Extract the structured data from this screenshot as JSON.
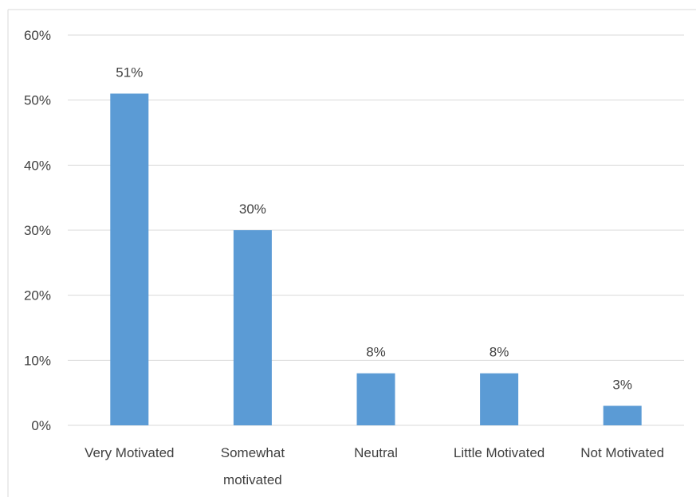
{
  "chart_data": {
    "type": "bar",
    "categories": [
      [
        "Very Motivated"
      ],
      [
        "Somewhat",
        "motivated"
      ],
      [
        "Neutral"
      ],
      [
        "Little Motivated"
      ],
      [
        "Not Motivated"
      ]
    ],
    "values": [
      51,
      30,
      8,
      8,
      3
    ],
    "data_labels": [
      "51%",
      "30%",
      "8%",
      "8%",
      "3%"
    ],
    "ylim": [
      0,
      60
    ],
    "yticks": [
      0,
      10,
      20,
      30,
      40,
      50,
      60
    ],
    "ytick_labels": [
      "0%",
      "10%",
      "20%",
      "30%",
      "40%",
      "50%",
      "60%"
    ],
    "grid": true,
    "bar_color": "#5b9bd5",
    "grid_color": "#d9d9d9",
    "text_color": "#404040"
  }
}
